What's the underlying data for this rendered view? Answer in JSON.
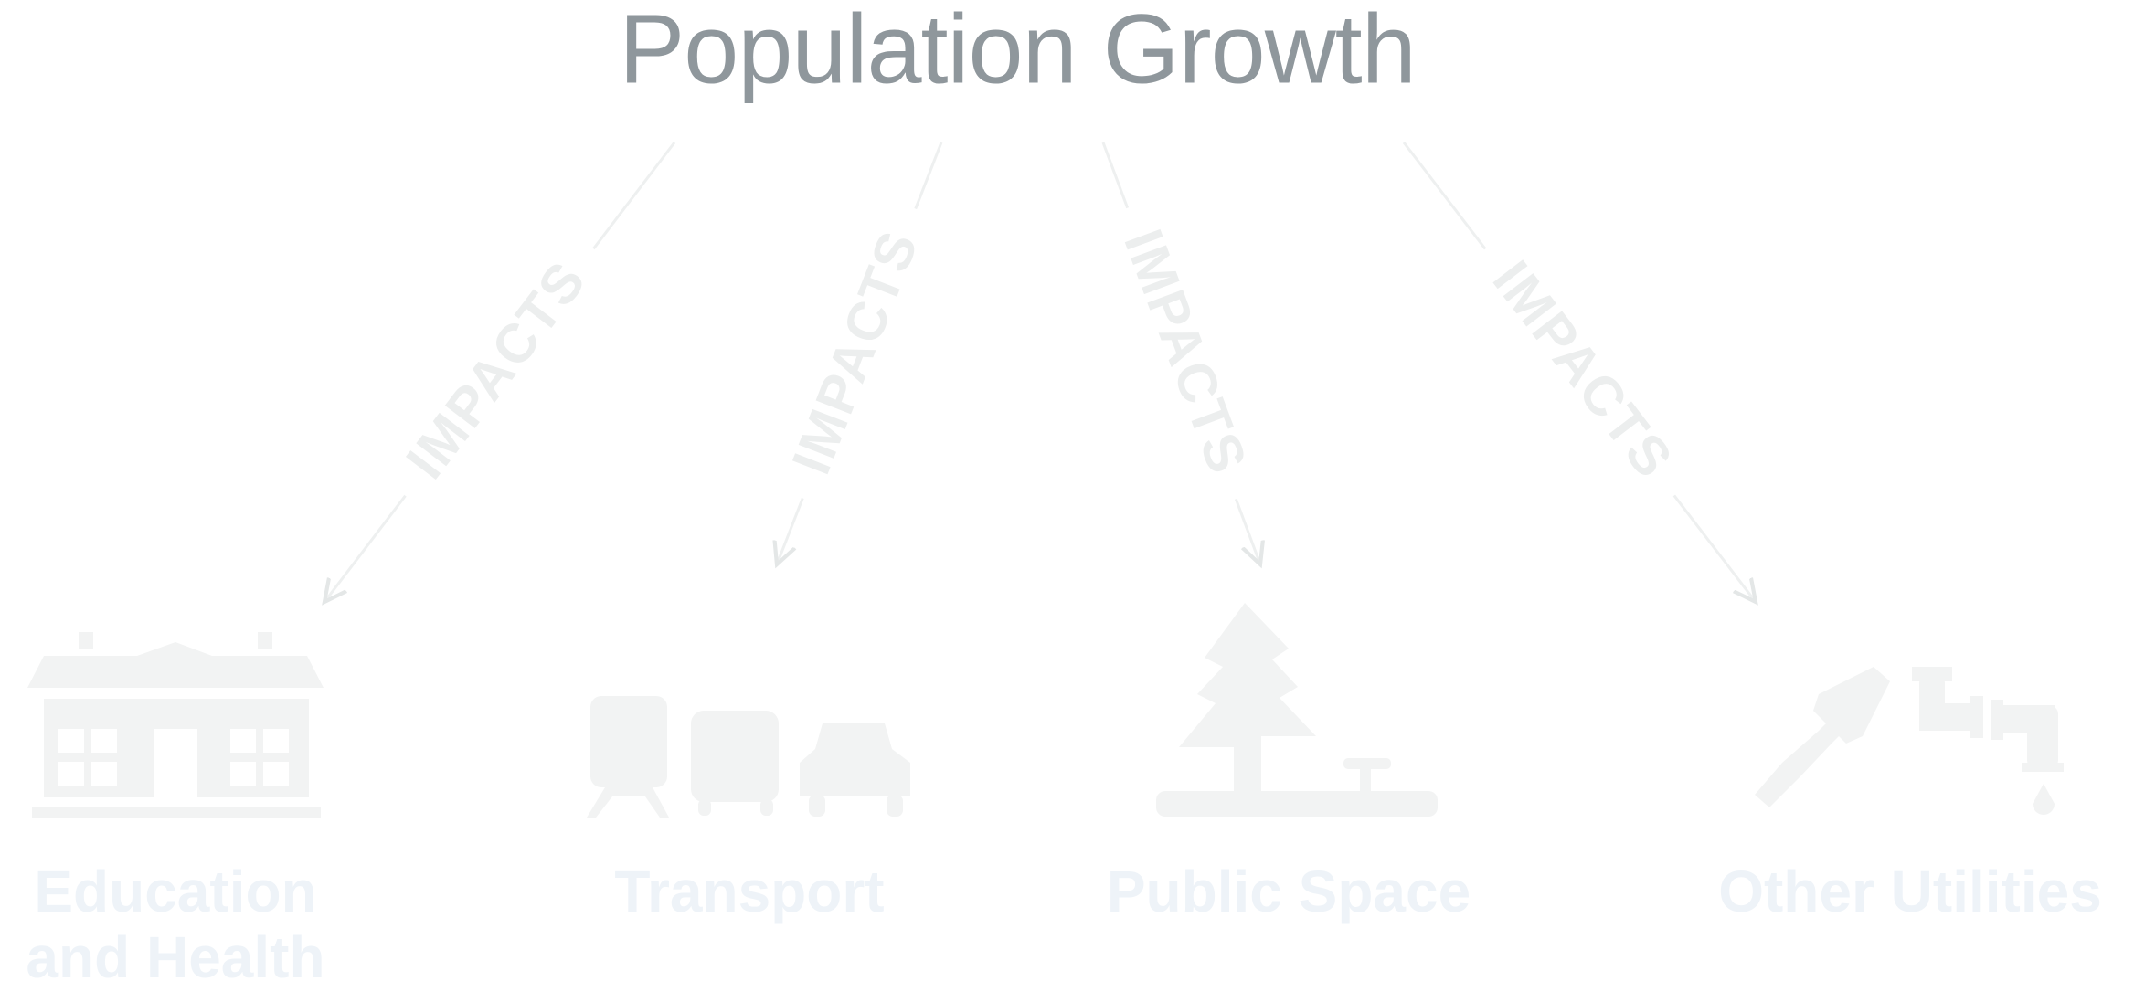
{
  "title": "Population Growth",
  "edges": [
    {
      "label": "IMPACTS"
    },
    {
      "label": "IMPACTS"
    },
    {
      "label": "IMPACTS"
    },
    {
      "label": "IMPACTS"
    }
  ],
  "nodes": [
    {
      "label": "Education and Health"
    },
    {
      "label": "Transport"
    },
    {
      "label": "Public Space"
    },
    {
      "label": "Other Utilities"
    }
  ]
}
